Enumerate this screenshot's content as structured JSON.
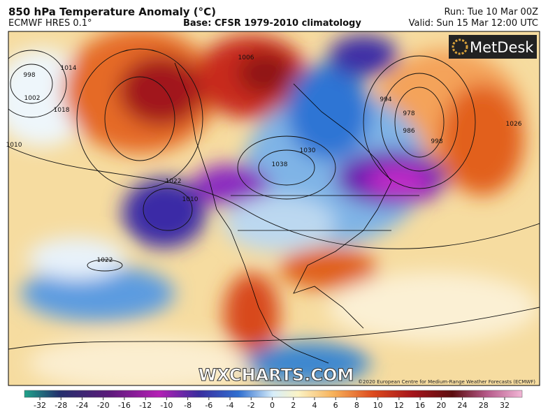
{
  "header": {
    "title": "850 hPa Temperature Anomaly (°C)",
    "model": "ECMWF HRES 0.1°",
    "base": "Base: CFSR 1979-2010 climatology",
    "run": "Run: Tue 10 Mar 00Z",
    "valid": "Valid: Sun 15 Mar 12:00 UTC"
  },
  "logo": "MetDesk",
  "watermark": "WXCHARTS.COM",
  "copyright": "©2020 European Centre for Medium-Range Weather Forecasts (ECMWF)",
  "isobar_labels": [
    998,
    1002,
    1014,
    1018,
    1010,
    1006,
    1022,
    1030,
    1038,
    994,
    978,
    986,
    998,
    1026,
    1022,
    1010
  ],
  "colorbar": {
    "ticks": [
      -32,
      -28,
      -24,
      -20,
      -16,
      -12,
      -10,
      -8,
      -6,
      -4,
      -2,
      0,
      2,
      4,
      6,
      8,
      10,
      12,
      16,
      20,
      24,
      28,
      32
    ]
  }
}
